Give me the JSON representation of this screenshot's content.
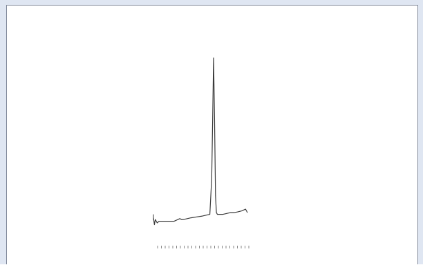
{
  "chart_data": {
    "type": "line",
    "title": "",
    "xlabel": "",
    "ylabel": "",
    "grid": false,
    "legend": "none",
    "xlim": [
      0,
      100
    ],
    "ylim": [
      0,
      100
    ],
    "x_tick_count": 25,
    "x_tick_labels": [
      "",
      "",
      " ",
      ""
    ],
    "peak_annotation": "",
    "series": [
      {
        "color": "#3a3a3a",
        "x": [
          0,
          1,
          2,
          4,
          6,
          10,
          14,
          18,
          22,
          26,
          28,
          30,
          32,
          36,
          40,
          46,
          52,
          56,
          60,
          62,
          63,
          64,
          65,
          66,
          67,
          68,
          69,
          70,
          72,
          74,
          78,
          82,
          86,
          90,
          94,
          98,
          100
        ],
        "y": [
          7,
          3,
          6,
          4,
          5,
          5,
          5,
          5,
          5,
          6,
          6.5,
          6,
          6,
          6.5,
          7,
          7.5,
          8,
          8.5,
          9,
          30,
          65,
          100,
          65,
          20,
          10,
          9,
          9,
          9,
          9,
          9,
          9.5,
          10,
          10,
          10.5,
          11,
          12,
          10
        ]
      }
    ]
  }
}
